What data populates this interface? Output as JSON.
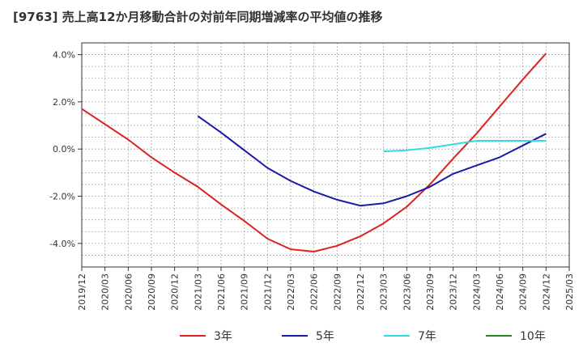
{
  "chart_data": {
    "type": "line",
    "title": "[9763]  売上高12か月移動合計の対前年同期増減率の平均値の推移",
    "y_ticks": [
      "4.0%",
      "2.0%",
      "0.0%",
      "-2.0%",
      "-4.0%"
    ],
    "y_tick_values": [
      4,
      2,
      0,
      -2,
      -4
    ],
    "ylim": [
      -5,
      4.5
    ],
    "x_ticks": [
      "2019/12",
      "2020/03",
      "2020/06",
      "2020/09",
      "2020/12",
      "2021/03",
      "2021/06",
      "2021/09",
      "2021/12",
      "2022/03",
      "2022/06",
      "2022/09",
      "2022/12",
      "2023/03",
      "2023/06",
      "2023/09",
      "2023/12",
      "2024/03",
      "2024/06",
      "2024/09",
      "2024/12",
      "2025/03"
    ],
    "grid": true,
    "legend_position": "bottom",
    "series": [
      {
        "name": "3年",
        "color": "#dd2222",
        "x": [
          "2019/12",
          "2020/03",
          "2020/06",
          "2020/09",
          "2020/12",
          "2021/03",
          "2021/06",
          "2021/09",
          "2021/12",
          "2022/03",
          "2022/06",
          "2022/09",
          "2022/12",
          "2023/03",
          "2023/06",
          "2023/09",
          "2023/12",
          "2024/03",
          "2024/06",
          "2024/09",
          "2024/12"
        ],
        "values": [
          1.7,
          1.05,
          0.4,
          -0.35,
          -1.0,
          -1.6,
          -2.35,
          -3.05,
          -3.8,
          -4.25,
          -4.35,
          -4.1,
          -3.7,
          -3.15,
          -2.45,
          -1.5,
          -0.4,
          0.65,
          1.8,
          2.95,
          4.05
        ]
      },
      {
        "name": "5年",
        "color": "#1a1aaa",
        "x": [
          "2021/03",
          "2021/06",
          "2021/09",
          "2021/12",
          "2022/03",
          "2022/06",
          "2022/09",
          "2022/12",
          "2023/03",
          "2023/06",
          "2023/09",
          "2023/12",
          "2024/03",
          "2024/06",
          "2024/09",
          "2024/12"
        ],
        "values": [
          1.4,
          0.7,
          -0.05,
          -0.8,
          -1.35,
          -1.8,
          -2.15,
          -2.4,
          -2.3,
          -2.0,
          -1.6,
          -1.05,
          -0.7,
          -0.35,
          0.15,
          0.65
        ]
      },
      {
        "name": "7年",
        "color": "#33dddd",
        "x": [
          "2023/03",
          "2023/06",
          "2023/09",
          "2023/12",
          "2024/03",
          "2024/06",
          "2024/09",
          "2024/12"
        ],
        "values": [
          -0.1,
          -0.05,
          0.05,
          0.2,
          0.35,
          0.35,
          0.35,
          0.35
        ]
      },
      {
        "name": "10年",
        "color": "#228822",
        "x": [],
        "values": []
      }
    ]
  }
}
